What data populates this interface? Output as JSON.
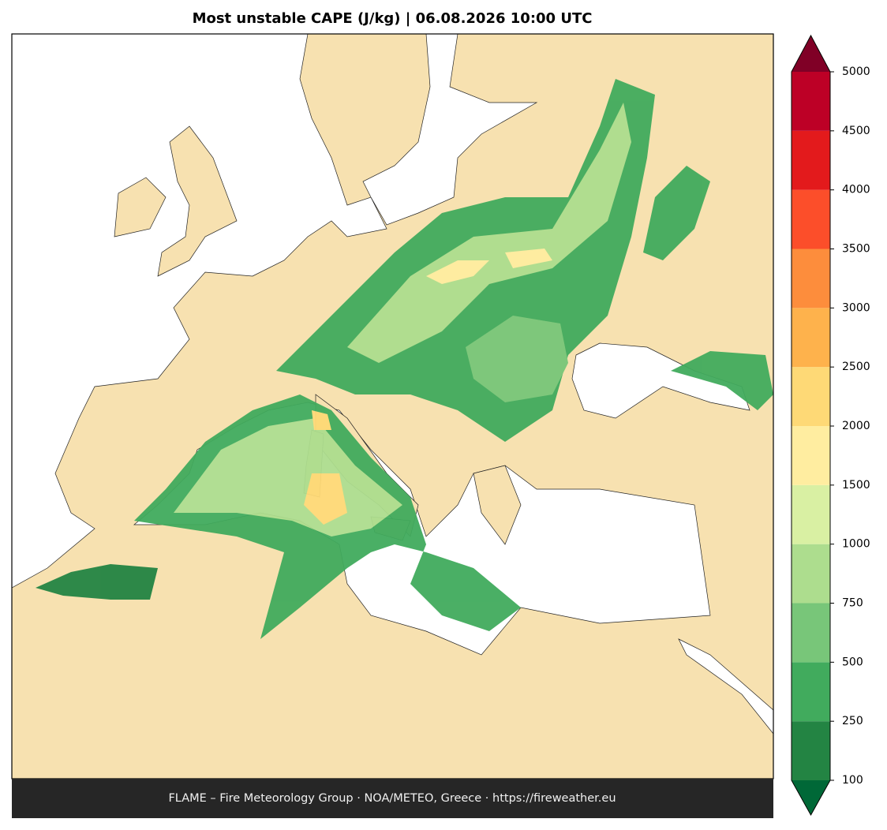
{
  "title": "Most unstable CAPE (J/kg)  |  06.08.2026 10:00 UTC",
  "footer": "FLAME – Fire Meteorology Group · NOA/METEO, Greece · https://fireweather.eu",
  "colorbar": {
    "ticks": [
      100,
      250,
      500,
      750,
      1000,
      1500,
      2000,
      2500,
      3000,
      3500,
      4000,
      4500,
      5000
    ],
    "colors": [
      "#238443",
      "#41ab5d",
      "#78c679",
      "#addd8e",
      "#d9f0a3",
      "#ffeda0",
      "#fed976",
      "#feb24c",
      "#fd8d3c",
      "#fc4e2a",
      "#e31a1c",
      "#bd0026"
    ],
    "under_color": "#006837",
    "over_color": "#800026"
  }
}
